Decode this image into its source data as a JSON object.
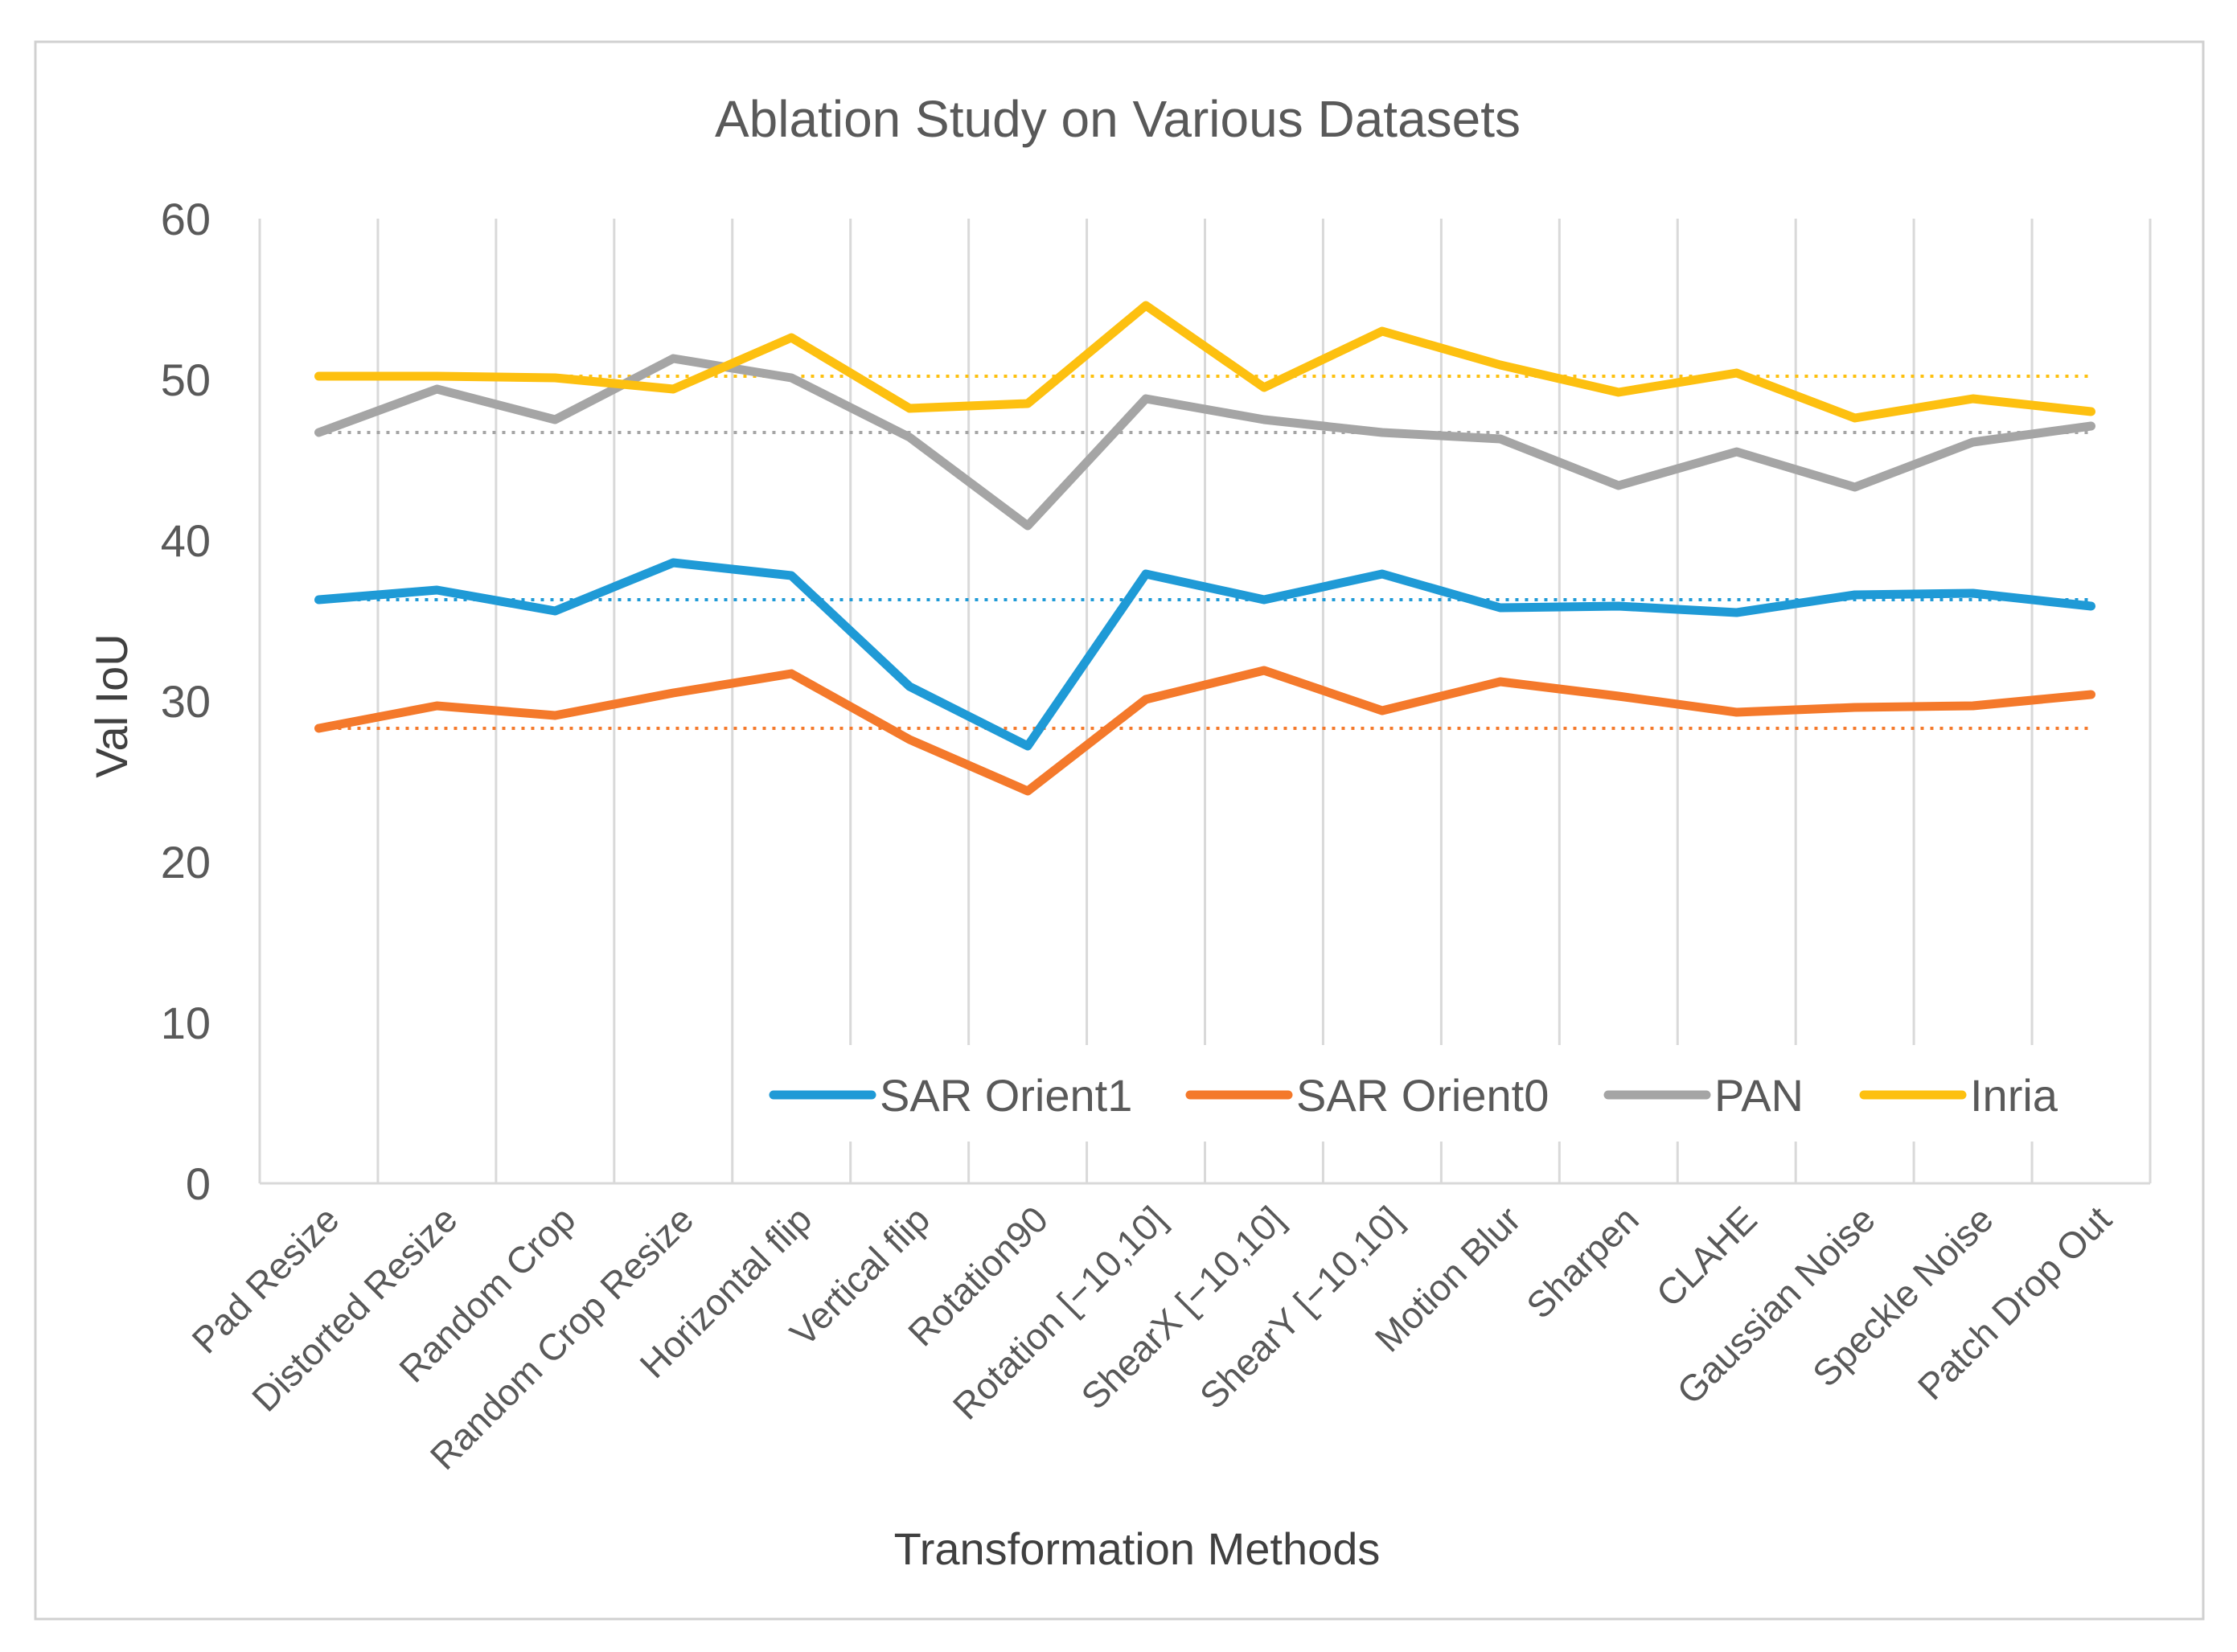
{
  "chart_data": {
    "type": "line",
    "title": "Ablation Study on Various Datasets",
    "xlabel": "Transformation Methods",
    "ylabel": "Val IoU",
    "ylim": [
      0,
      60
    ],
    "yticks": [
      0,
      10,
      20,
      30,
      40,
      50,
      60
    ],
    "grid": "vertical",
    "legend_position": "bottom-right",
    "categories": [
      "Pad Resize",
      "Distorted Resize",
      "Random Crop",
      "Random Crop Resize",
      "Horizontal flip",
      "Vertical flip",
      "Rotation90",
      "Rotation [−10,10]",
      "ShearX [−10,10]",
      "ShearY [−10,10]",
      "Motion Blur",
      "Sharpen",
      "CLAHE",
      "Gaussian Noise",
      "Speckle Noise",
      "Patch Drop Out"
    ],
    "series": [
      {
        "name": "SAR Orient1",
        "color": "#1f9ad6",
        "values": [
          36.3,
          36.9,
          35.6,
          38.6,
          37.8,
          30.9,
          27.2,
          37.9,
          36.3,
          37.9,
          35.8,
          35.9,
          35.5,
          36.6,
          36.7,
          35.9
        ],
        "baseline": 36.3
      },
      {
        "name": "SAR Orient0",
        "color": "#f4792b",
        "values": [
          28.3,
          29.7,
          29.1,
          30.5,
          31.7,
          27.6,
          24.4,
          30.1,
          31.9,
          29.4,
          31.2,
          30.3,
          29.3,
          29.6,
          29.7,
          30.4
        ],
        "baseline": 28.3
      },
      {
        "name": "PAN",
        "color": "#a5a5a5",
        "values": [
          46.7,
          49.4,
          47.5,
          51.3,
          50.1,
          46.4,
          40.9,
          48.8,
          47.5,
          46.7,
          46.3,
          43.4,
          45.5,
          43.3,
          46.1,
          47.1
        ],
        "baseline": 46.7
      },
      {
        "name": "Inria",
        "color": "#fdc010",
        "values": [
          50.2,
          50.2,
          50.1,
          49.4,
          52.6,
          48.2,
          48.5,
          54.6,
          49.5,
          53.0,
          50.9,
          49.2,
          50.4,
          47.6,
          48.8,
          48.0
        ],
        "baseline": 50.2
      }
    ]
  }
}
